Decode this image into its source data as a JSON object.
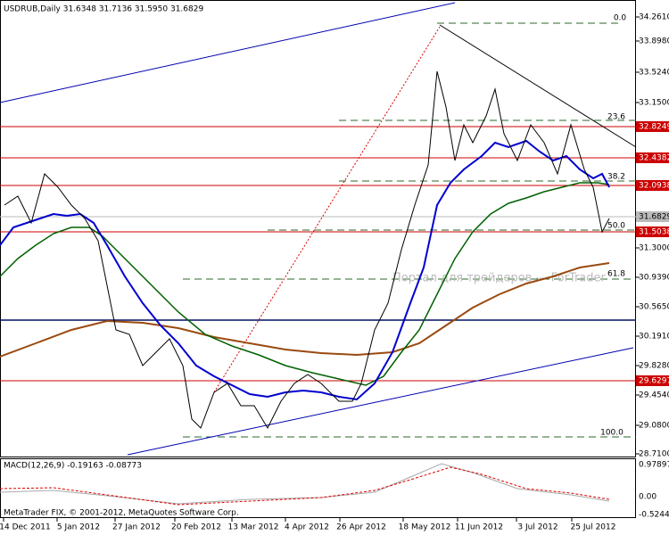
{
  "header": "USDRUB,Daily  31.6348 31.7136 31.5950 31.6829",
  "macd_header": "MACD(12,26,9) -0.19163 -0.08773",
  "copyright": "MetaTrader FIX, © 2001-2012, MetaQuotes Software Corp.",
  "watermark": "Портал для трейдеров — ForTrader",
  "price_axis": [
    "34.2610",
    "33.8980",
    "33.5240",
    "33.1500",
    "32.8249",
    "32.4382",
    "32.0938",
    "31.6829",
    "31.5038",
    "31.3000",
    "30.9390",
    "30.5650",
    "30.1910",
    "29.8280",
    "29.6297",
    "29.4540",
    "29.0800",
    "28.7100"
  ],
  "macd_axis": [
    "0.97897",
    "0.00",
    "-0.52449"
  ],
  "fib_levels": [
    "0.0",
    "23.6",
    "38.2",
    "50.0",
    "61.8",
    "100.0"
  ],
  "dates": [
    "14 Dec 2011",
    "5 Jan 2012",
    "27 Jan 2012",
    "20 Feb 2012",
    "13 Mar 2012",
    "4 Apr 2012",
    "26 Apr 2012",
    "18 May 2012",
    "11 Jun 2012",
    "3 Jul 2012",
    "25 Jul 2012"
  ]
}
